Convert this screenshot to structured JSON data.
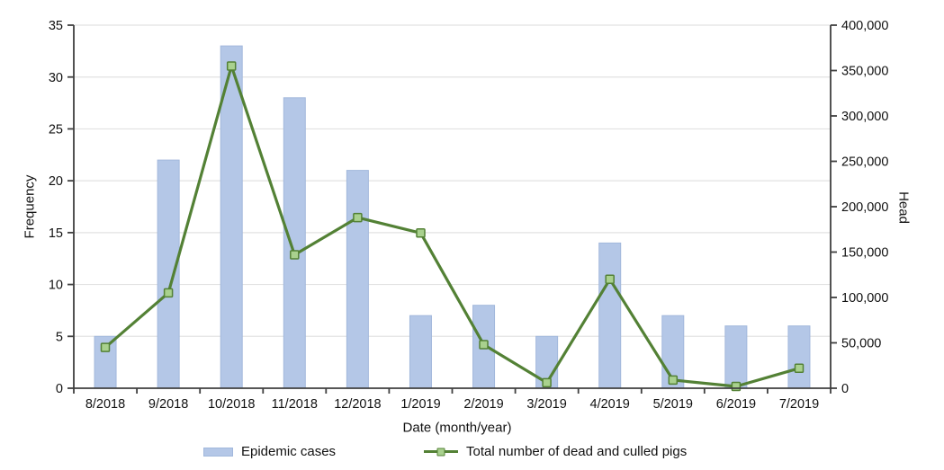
{
  "colors": {
    "bar_fill": "#b4c7e7",
    "bar_border": "#a2b8dc",
    "line": "#538135",
    "marker_fill": "#a9d18e",
    "marker_border": "#538135",
    "gridline": "#e2e2e2",
    "axis": "#3f3f3f",
    "text": "#111111",
    "background": "#ffffff"
  },
  "chart_data": {
    "type": "combo-bar-line",
    "categories": [
      "8/2018",
      "9/2018",
      "10/2018",
      "11/2018",
      "12/2018",
      "1/2019",
      "2/2019",
      "3/2019",
      "4/2019",
      "5/2019",
      "6/2019",
      "7/2019"
    ],
    "series": [
      {
        "name": "Epidemic cases",
        "type": "bar",
        "axis": "left",
        "values": [
          5,
          22,
          33,
          28,
          21,
          7,
          8,
          5,
          14,
          7,
          6,
          6
        ]
      },
      {
        "name": "Total number of dead and culled pigs",
        "type": "line",
        "axis": "right",
        "values": [
          45000,
          105000,
          355000,
          147000,
          188000,
          171000,
          48000,
          6000,
          120000,
          9000,
          2000,
          22000
        ]
      }
    ],
    "left_axis": {
      "label": "Frequency",
      "min": 0,
      "max": 35,
      "tick_step": 5
    },
    "right_axis": {
      "label": "Head",
      "min": 0,
      "max": 400000,
      "tick_step": 50000
    },
    "xlabel": "Date (month/year)",
    "grid": true,
    "legend_position": "bottom"
  }
}
